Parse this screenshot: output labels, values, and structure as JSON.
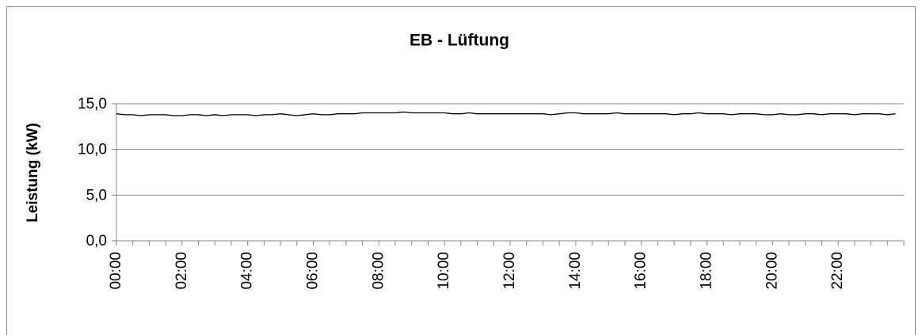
{
  "chart_data": {
    "type": "line",
    "title": "EB - Lüftung",
    "y_label": "Leistung (kW)",
    "categories": [
      "00:00",
      null,
      null,
      null,
      null,
      null,
      null,
      null,
      "02:00",
      null,
      null,
      null,
      null,
      null,
      null,
      null,
      "04:00",
      null,
      null,
      null,
      null,
      null,
      null,
      null,
      "06:00",
      null,
      null,
      null,
      null,
      null,
      null,
      null,
      "08:00",
      null,
      null,
      null,
      null,
      null,
      null,
      null,
      "10:00",
      null,
      null,
      null,
      null,
      null,
      null,
      null,
      "12:00",
      null,
      null,
      null,
      null,
      null,
      null,
      null,
      "14:00",
      null,
      null,
      null,
      null,
      null,
      null,
      null,
      "16:00",
      null,
      null,
      null,
      null,
      null,
      null,
      null,
      "18:00",
      null,
      null,
      null,
      null,
      null,
      null,
      null,
      "20:00",
      null,
      null,
      null,
      null,
      null,
      null,
      null,
      "22:00",
      null,
      null,
      null,
      null,
      null,
      null,
      null
    ],
    "values": [
      13.9,
      13.8,
      13.8,
      13.7,
      13.8,
      13.8,
      13.8,
      13.7,
      13.7,
      13.8,
      13.8,
      13.7,
      13.8,
      13.7,
      13.8,
      13.8,
      13.8,
      13.7,
      13.8,
      13.8,
      13.9,
      13.8,
      13.7,
      13.8,
      13.9,
      13.8,
      13.8,
      13.9,
      13.9,
      13.9,
      14.0,
      14.0,
      14.0,
      14.0,
      14.0,
      14.1,
      14.0,
      14.0,
      14.0,
      14.0,
      14.0,
      13.9,
      13.9,
      14.0,
      13.9,
      13.9,
      13.9,
      13.9,
      13.9,
      13.9,
      13.9,
      13.9,
      13.9,
      13.8,
      13.9,
      14.0,
      14.0,
      13.9,
      13.9,
      13.9,
      13.9,
      14.0,
      13.9,
      13.9,
      13.9,
      13.9,
      13.9,
      13.9,
      13.8,
      13.9,
      13.9,
      14.0,
      13.9,
      13.9,
      13.9,
      13.8,
      13.9,
      13.9,
      13.9,
      13.8,
      13.8,
      13.9,
      13.8,
      13.8,
      13.9,
      13.9,
      13.8,
      13.9,
      13.9,
      13.9,
      13.8,
      13.9,
      13.9,
      13.9,
      13.8,
      13.9
    ],
    "color": "#000000",
    "ylim": [
      0,
      15
    ],
    "yticks": [
      {
        "value": 0,
        "label": "0,0"
      },
      {
        "value": 5,
        "label": "5,0"
      },
      {
        "value": 10,
        "label": "10,0"
      },
      {
        "value": 15,
        "label": "15,0"
      }
    ],
    "grid": true
  }
}
